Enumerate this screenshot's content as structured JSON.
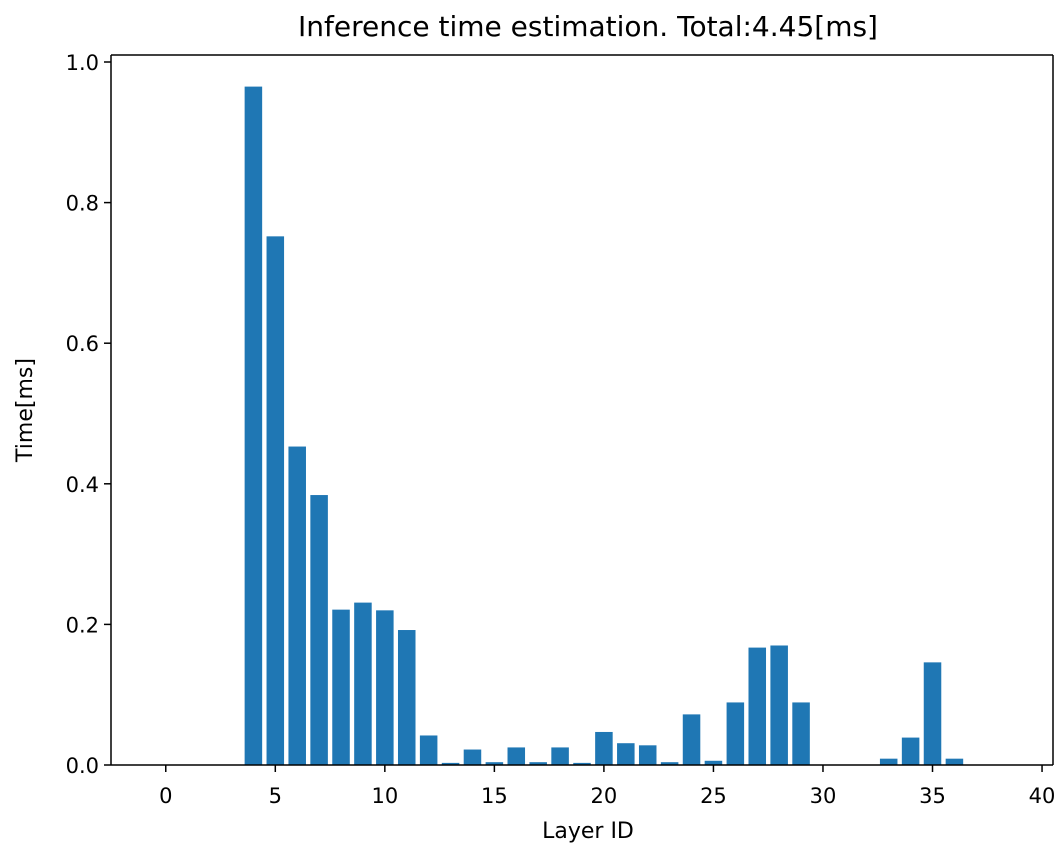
{
  "chart_data": {
    "type": "bar",
    "title": "Inference time estimation. Total:4.45[ms]",
    "xlabel": "Layer ID",
    "ylabel": "Time[ms]",
    "xlim": [
      -2.5,
      40.5
    ],
    "ylim": [
      0,
      1.0
    ],
    "xticks": [
      0,
      5,
      10,
      15,
      20,
      25,
      30,
      35,
      40
    ],
    "xtick_labels": [
      "0",
      "5",
      "10",
      "15",
      "20",
      "25",
      "30",
      "35",
      "40"
    ],
    "yticks": [
      0.0,
      0.2,
      0.4,
      0.6,
      0.8,
      1.0
    ],
    "ytick_labels": [
      "0.0",
      "0.2",
      "0.4",
      "0.6",
      "0.8",
      "1.0"
    ],
    "grid": false,
    "bar_color": "#1f77b4",
    "x": [
      4,
      5,
      6,
      7,
      8,
      9,
      10,
      11,
      12,
      13,
      14,
      15,
      16,
      17,
      18,
      19,
      20,
      21,
      22,
      23,
      24,
      25,
      26,
      27,
      28,
      29,
      33,
      34,
      35,
      36
    ],
    "values": [
      0.965,
      0.752,
      0.453,
      0.384,
      0.221,
      0.231,
      0.22,
      0.192,
      0.042,
      0.003,
      0.022,
      0.004,
      0.025,
      0.004,
      0.025,
      0.003,
      0.047,
      0.031,
      0.028,
      0.004,
      0.072,
      0.006,
      0.089,
      0.167,
      0.17,
      0.089,
      0.009,
      0.039,
      0.146,
      0.009
    ]
  }
}
